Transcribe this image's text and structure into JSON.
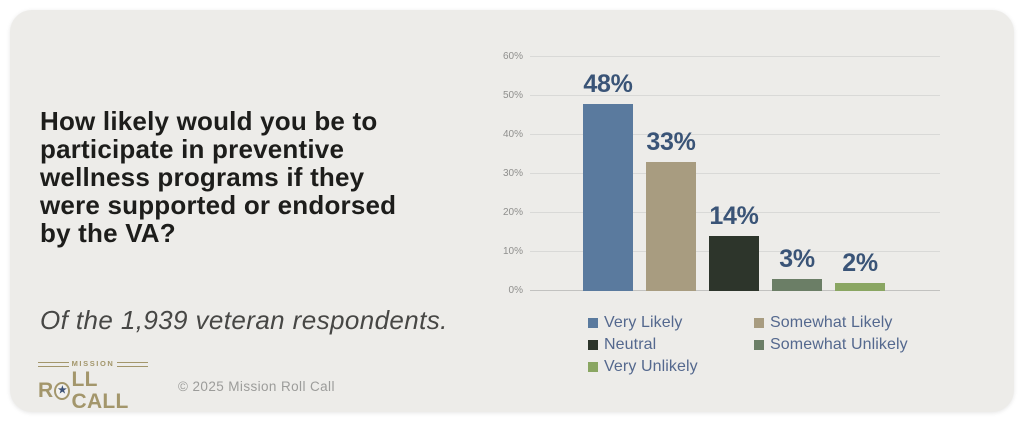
{
  "left_panel": {
    "title": "How likely would you be to participate in preventive wellness programs if they were supported or endorsed by the VA?",
    "title_lines": [
      "How likely would you be to",
      "participate in preventive",
      "wellness programs if they",
      "were supported or endorsed",
      "by the VA?"
    ],
    "subtitle": "Of the 1,939 veteran respondents."
  },
  "footer": {
    "logo_top": "MISSION",
    "logo_r": "R",
    "logo_rest": "LL CALL",
    "star_glyph": "★",
    "copyright": "© 2025 Mission Roll Call"
  },
  "chart_data": {
    "type": "bar",
    "title": "",
    "xlabel": "",
    "ylabel": "",
    "categories": [
      "Very Likely",
      "Somewhat Likely",
      "Neutral",
      "Somewhat Unlikely",
      "Very Unlikely"
    ],
    "values": [
      48,
      33,
      14,
      3,
      2
    ],
    "value_labels": [
      "48%",
      "33%",
      "14%",
      "3%",
      "2%"
    ],
    "bar_colors": [
      "#5a7a9e",
      "#a89c80",
      "#2d352b",
      "#6b7e66",
      "#8aa662"
    ],
    "ylim": [
      0,
      60
    ],
    "tick_values": [
      0,
      10,
      20,
      30,
      40,
      50,
      60
    ],
    "tick_labels": [
      "0%",
      "10%",
      "20%",
      "30%",
      "40%",
      "50%",
      "60%"
    ],
    "grid": true,
    "legend_position": "bottom",
    "legend_entries": [
      "Very Likely",
      "Somewhat Likely",
      "Neutral",
      "Somewhat Unlikely",
      "Very Unlikely"
    ]
  },
  "colors": {
    "card_background": "#edece9",
    "page_background": "#ffffff",
    "value_label": "#3a5477",
    "legend_text": "#54688e",
    "gridline": "#d9d9d7",
    "axis_line": "#c2c2c0",
    "tick_text": "#8f8f8d",
    "title_text": "#1d1d1b",
    "logo_tan": "#a3966b",
    "logo_star_navy": "#3d5276"
  }
}
